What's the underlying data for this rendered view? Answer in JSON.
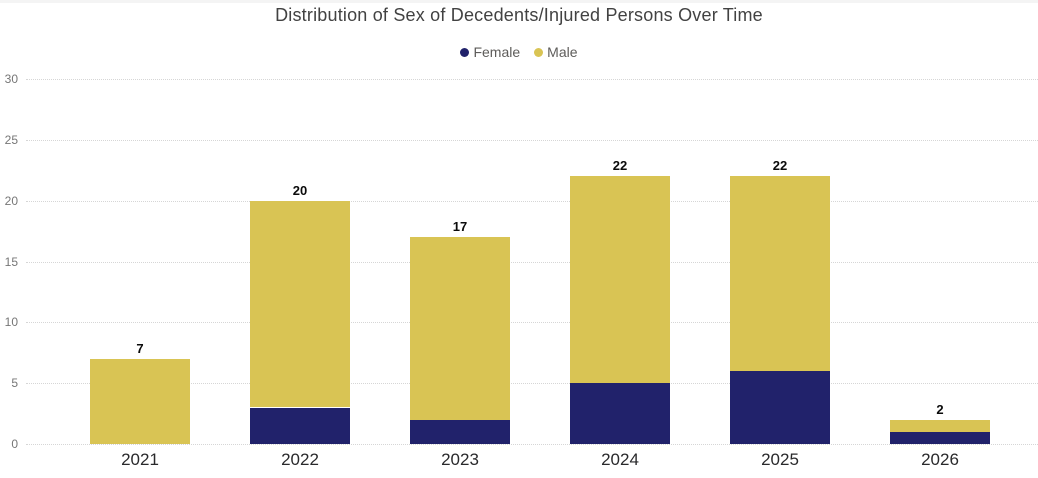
{
  "chart_data": {
    "type": "bar",
    "stacked": true,
    "title": "Distribution of Sex of Decedents/Injured Persons Over Time",
    "categories": [
      "2021",
      "2022",
      "2023",
      "2024",
      "2025",
      "2026"
    ],
    "series": [
      {
        "name": "Female",
        "color": "#21226B",
        "values": [
          0,
          3,
          2,
          5,
          6,
          1
        ]
      },
      {
        "name": "Male",
        "color": "#D9C454",
        "values": [
          7,
          17,
          15,
          17,
          16,
          1
        ]
      }
    ],
    "totals": [
      7,
      20,
      17,
      22,
      22,
      2
    ],
    "xlabel": "",
    "ylabel": "",
    "ylim": [
      0,
      30
    ],
    "yticks": [
      0,
      5,
      10,
      15,
      20,
      25,
      30
    ],
    "grid": "horizontal-dotted",
    "legend_position": "top-center",
    "colors": {
      "female": "#21226B",
      "male": "#D9C454",
      "gridline": "#D6D6D6",
      "title_text": "#424242",
      "legend_text": "#5E5C5A",
      "y_axis_text": "#767676",
      "x_axis_text": "#29292B",
      "data_label_text": "#0B0B0B",
      "background": "#FFFFFF"
    }
  }
}
